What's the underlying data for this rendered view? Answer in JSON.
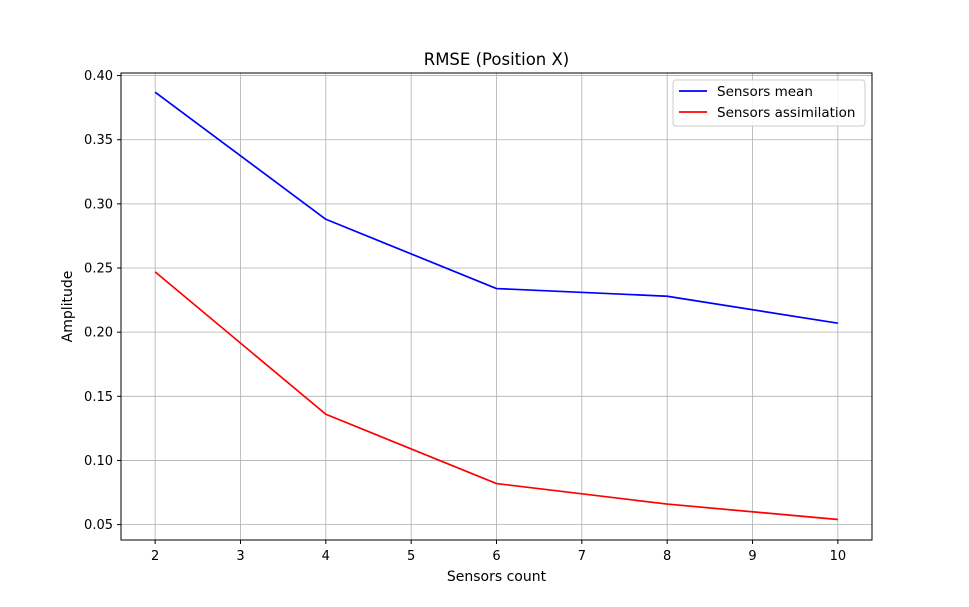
{
  "chart_data": {
    "type": "line",
    "title": "RMSE (Position X)",
    "xlabel": "Sensors count",
    "ylabel": "Amplitude",
    "x": [
      2,
      4,
      6,
      8,
      10
    ],
    "xticks": [
      "2",
      "3",
      "4",
      "5",
      "6",
      "7",
      "8",
      "9",
      "10"
    ],
    "yticks": [
      "0.05",
      "0.10",
      "0.15",
      "0.20",
      "0.25",
      "0.30",
      "0.35",
      "0.40"
    ],
    "xlim": [
      1.6,
      10.4
    ],
    "ylim": [
      0.038,
      0.402
    ],
    "grid": true,
    "legend_position": "top-right",
    "series": [
      {
        "name": "Sensors mean",
        "color": "#0000ff",
        "values": [
          0.387,
          0.288,
          0.234,
          0.228,
          0.207
        ]
      },
      {
        "name": "Sensors assimilation",
        "color": "#ff0000",
        "values": [
          0.247,
          0.136,
          0.082,
          0.066,
          0.054
        ]
      }
    ]
  }
}
